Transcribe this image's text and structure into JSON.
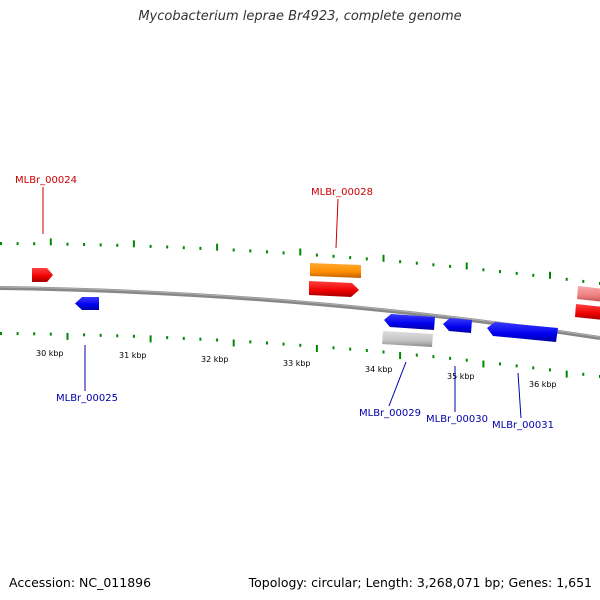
{
  "title": "Mycobacterium leprae Br4923, complete genome",
  "footer": {
    "accession": "Accession: NC_011896",
    "summary": "Topology: circular; Length: 3,268,071 bp; Genes: 1,651"
  },
  "colors": {
    "forward_cds": "#ff0000",
    "reverse_cds": "#0000ff",
    "pseudogene": "#c0c0c0",
    "rna": "#ff8800",
    "faded_cds": "#f08080",
    "label_forward": "#cc0000",
    "label_reverse": "#0000aa",
    "ticks": "#008800",
    "backbone": "#888888"
  },
  "gene_labels": [
    {
      "name": "MLBr_00024",
      "strand": "forward"
    },
    {
      "name": "MLBr_00028",
      "strand": "forward"
    },
    {
      "name": "MLBr_00025",
      "strand": "reverse"
    },
    {
      "name": "MLBr_00029",
      "strand": "reverse"
    },
    {
      "name": "MLBr_00030",
      "strand": "reverse"
    },
    {
      "name": "MLBr_00031",
      "strand": "reverse"
    }
  ],
  "scale_labels": [
    "30 kbp",
    "31 kbp",
    "32 kbp",
    "33 kbp",
    "34 kbp",
    "35 kbp",
    "36 kbp"
  ]
}
